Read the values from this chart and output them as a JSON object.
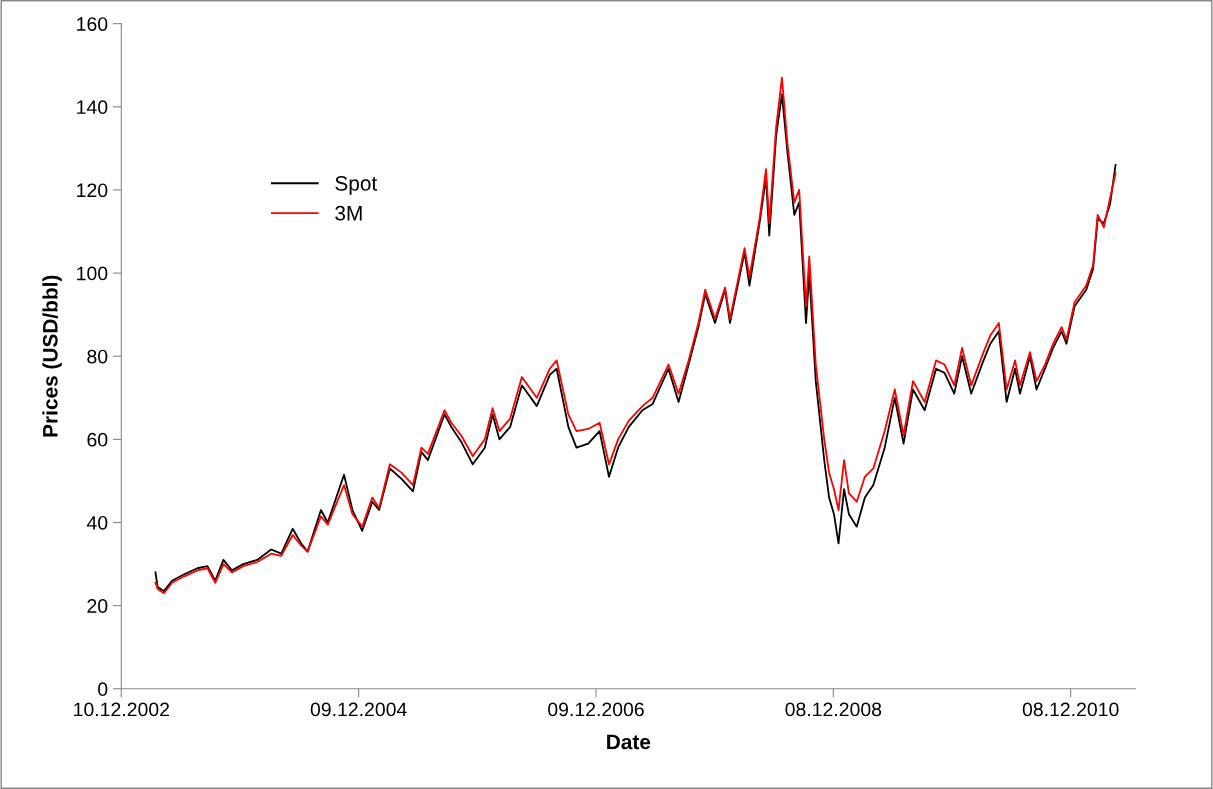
{
  "chart_data": {
    "type": "line",
    "xlabel": "Date",
    "ylabel": "Prices (USD/bbl)",
    "xlim": [
      "2002-12-10",
      "2011-06-25"
    ],
    "xticks": [
      {
        "value": "2002-12-10",
        "label": "10.12.2002"
      },
      {
        "value": "2004-12-09",
        "label": "09.12.2004"
      },
      {
        "value": "2006-12-09",
        "label": "09.12.2006"
      },
      {
        "value": "2008-12-08",
        "label": "08.12.2008"
      },
      {
        "value": "2010-12-08",
        "label": "08.12.2010"
      }
    ],
    "ylim": [
      0,
      160
    ],
    "yticks": [
      0,
      20,
      40,
      60,
      80,
      100,
      120,
      140,
      160
    ],
    "grid": false,
    "legend": "upper left",
    "marker": "none",
    "line_style": "solid",
    "x": [
      "2003-03-25",
      "2003-04-01",
      "2003-04-20",
      "2003-05-15",
      "2003-06-20",
      "2003-08-01",
      "2003-09-01",
      "2003-09-25",
      "2003-10-20",
      "2003-11-15",
      "2003-12-20",
      "2004-02-01",
      "2004-03-15",
      "2004-04-15",
      "2004-05-20",
      "2004-06-15",
      "2004-07-05",
      "2004-08-15",
      "2004-09-05",
      "2004-10-25",
      "2004-11-20",
      "2004-12-20",
      "2005-01-20",
      "2005-02-10",
      "2005-03-15",
      "2005-04-20",
      "2005-05-25",
      "2005-06-20",
      "2005-07-10",
      "2005-08-30",
      "2005-09-20",
      "2005-10-20",
      "2005-11-25",
      "2006-01-01",
      "2006-01-25",
      "2006-02-15",
      "2006-03-20",
      "2006-04-25",
      "2006-06-10",
      "2006-07-20",
      "2006-08-10",
      "2006-09-15",
      "2006-10-10",
      "2006-11-15",
      "2006-12-20",
      "2007-01-18",
      "2007-02-15",
      "2007-03-20",
      "2007-05-01",
      "2007-06-01",
      "2007-07-20",
      "2007-08-20",
      "2007-09-20",
      "2007-10-20",
      "2007-11-10",
      "2007-12-10",
      "2008-01-10",
      "2008-01-25",
      "2008-03-10",
      "2008-03-25",
      "2008-04-25",
      "2008-05-15",
      "2008-05-25",
      "2008-06-15",
      "2008-07-03",
      "2008-07-20",
      "2008-08-10",
      "2008-08-25",
      "2008-09-15",
      "2008-09-25",
      "2008-10-15",
      "2008-11-10",
      "2008-11-25",
      "2008-12-10",
      "2008-12-24",
      "2009-01-10",
      "2009-01-25",
      "2009-02-18",
      "2009-03-15",
      "2009-04-10",
      "2009-05-15",
      "2009-06-15",
      "2009-07-12",
      "2009-08-10",
      "2009-09-15",
      "2009-10-20",
      "2009-11-15",
      "2009-12-15",
      "2010-01-08",
      "2010-02-05",
      "2010-03-15",
      "2010-04-05",
      "2010-05-01",
      "2010-05-25",
      "2010-06-20",
      "2010-07-05",
      "2010-08-05",
      "2010-08-25",
      "2010-09-20",
      "2010-10-15",
      "2010-11-10",
      "2010-11-25",
      "2010-12-20",
      "2011-01-25",
      "2011-02-15",
      "2011-03-01",
      "2011-03-20",
      "2011-04-08",
      "2011-04-25"
    ],
    "series": [
      {
        "name": "Spot",
        "color": "#000000",
        "values": [
          28,
          24.5,
          23.5,
          26,
          27.5,
          29,
          29.5,
          26,
          31,
          28.5,
          30,
          31,
          33.5,
          32.5,
          38.5,
          35,
          33,
          43,
          40,
          51.5,
          43,
          38,
          45,
          43,
          53,
          50.5,
          47.5,
          57,
          55,
          66,
          63,
          59.5,
          54,
          58,
          66,
          60,
          63,
          73,
          68,
          75.5,
          77,
          63,
          58,
          59,
          62,
          51,
          58,
          63,
          67,
          68.5,
          77,
          69,
          78,
          87,
          95,
          88,
          96,
          88,
          105,
          97,
          112,
          123,
          109,
          133,
          143,
          129,
          114,
          117,
          88,
          100,
          74,
          55,
          46,
          42,
          35,
          48,
          42,
          39,
          46,
          49,
          58,
          70,
          59,
          72,
          67,
          77,
          76,
          71,
          80,
          71,
          79,
          83,
          86,
          69,
          77,
          71,
          80,
          72,
          77,
          82,
          86,
          83,
          92,
          96,
          101,
          113,
          112,
          116.5,
          126
        ]
      },
      {
        "name": "3M",
        "color": "#ff0000",
        "values": [
          25.5,
          24,
          23,
          25.5,
          27,
          28.5,
          29,
          25.5,
          30,
          28,
          29.5,
          30.5,
          32.5,
          32,
          37,
          34.5,
          33,
          41.5,
          39.5,
          49,
          42,
          39,
          46,
          43.5,
          54,
          52,
          49,
          58,
          56.5,
          67,
          64,
          61,
          56,
          60,
          67.5,
          62,
          65,
          75,
          70,
          77,
          79,
          66,
          62,
          62.5,
          64,
          54,
          60,
          64.5,
          68,
          70,
          78,
          71,
          79,
          88,
          96,
          89,
          96.5,
          89,
          106,
          99,
          113,
          125,
          112,
          135,
          147,
          131,
          117,
          120,
          92,
          104,
          78,
          60,
          52,
          48,
          43,
          55,
          47,
          45,
          51,
          53,
          62,
          72,
          61,
          74,
          69,
          79,
          78,
          73,
          82,
          73,
          81,
          85,
          88,
          72,
          79,
          73,
          81,
          74,
          78,
          83,
          87,
          84,
          93,
          97,
          102,
          114,
          111,
          118,
          124
        ]
      }
    ]
  }
}
